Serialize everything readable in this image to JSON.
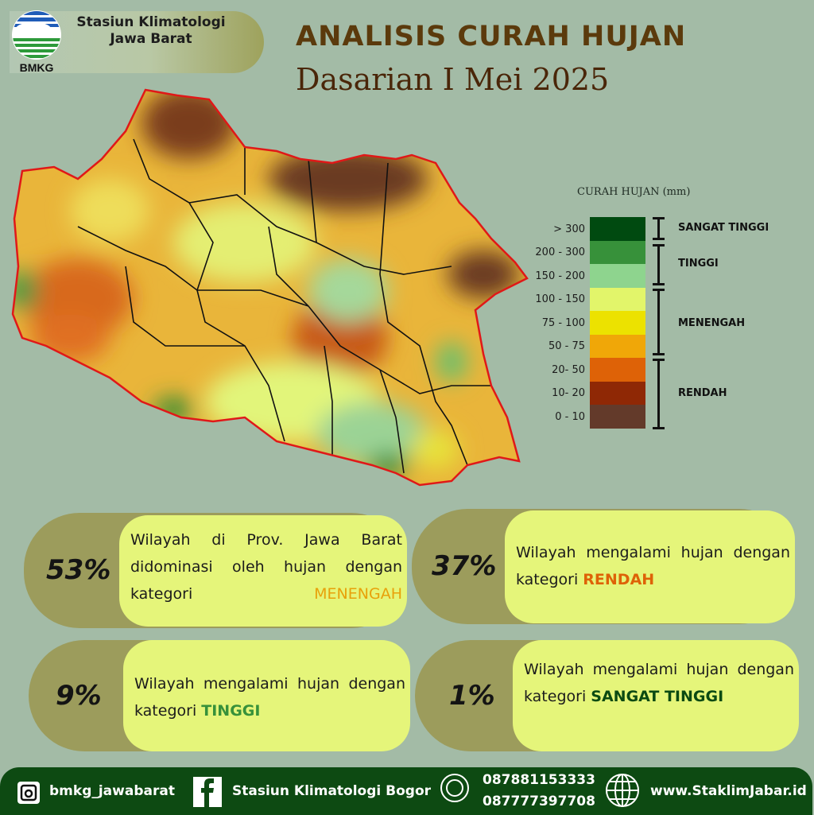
{
  "header": {
    "org_line1": "Stasiun Klimatologi",
    "org_line2": "Jawa Barat",
    "logo_text": "BMKG"
  },
  "title": {
    "main": "ANALISIS CURAH HUJAN",
    "sub": "Dasarian I Mei 2025"
  },
  "legend": {
    "title": "CURAH HUJAN (mm)",
    "ranges": [
      {
        "label": "> 300",
        "color": "#004a10"
      },
      {
        "label": "200 - 300",
        "color": "#37913a"
      },
      {
        "label": "150 - 200",
        "color": "#8ed48e"
      },
      {
        "label": "100 - 150",
        "color": "#e2f56a"
      },
      {
        "label": "75 - 100",
        "color": "#ece200"
      },
      {
        "label": "50 - 75",
        "color": "#f0a708"
      },
      {
        "label": "20- 50",
        "color": "#de6207"
      },
      {
        "label": "10- 20",
        "color": "#8f2805"
      },
      {
        "label": "0 - 10",
        "color": "#633a2a"
      }
    ],
    "categories": [
      "SANGAT TINGGI",
      "TINGGI",
      "MENENGAH",
      "RENDAH"
    ]
  },
  "stats": [
    {
      "percent": "53%",
      "text": "Wilayah di Prov. Jawa Barat didominasi oleh hujan dengan kategori",
      "category": "MENENGAH",
      "category_color": "#e8a10a"
    },
    {
      "percent": "37%",
      "text": "Wilayah mengalami hujan dengan kategori",
      "category": "RENDAH",
      "category_color": "#de6207"
    },
    {
      "percent": "9%",
      "text": "Wilayah mengalami hujan dengan kategori",
      "category": "TINGGI",
      "category_color": "#37913a"
    },
    {
      "percent": "1%",
      "text": "Wilayah mengalami hujan dengan kategori",
      "category": "SANGAT TINGGI",
      "category_color": "#0b4a12"
    }
  ],
  "footer": {
    "instagram": "bmkg_jawabarat",
    "facebook": "Stasiun Klimatologi Bogor",
    "phone1": "087881153333",
    "phone2": "087777397708",
    "website": "www.StaklimJabar.id"
  }
}
